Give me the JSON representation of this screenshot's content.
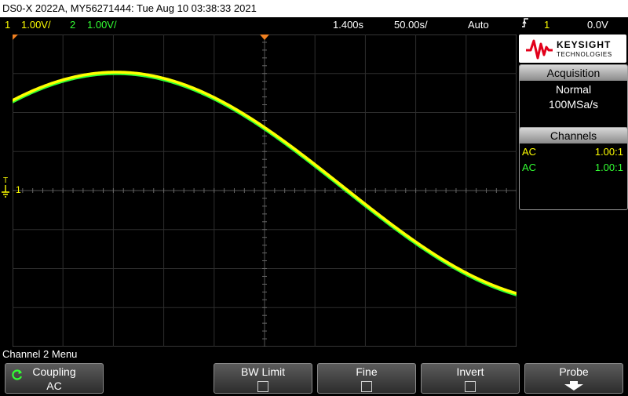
{
  "title_bar": "DS0-X 2022A, MY56271444: Tue Aug 10 03:38:33 2021",
  "status": {
    "ch1_num": "1",
    "ch1_scale": "1.00V/",
    "ch2_num": "2",
    "ch2_scale": "1.00V/",
    "time_delay": "1.400s",
    "time_scale": "50.00s/",
    "trigger_mode": "Auto",
    "trigger_ch": "1",
    "trigger_level": "0.0V"
  },
  "markers": {
    "trig_level_t": "T",
    "ch1_ground": "1"
  },
  "brand": {
    "name": "KEYSIGHT",
    "sub": "TECHNOLOGIES",
    "color": "#e2001a"
  },
  "acquisition": {
    "header": "Acquisition",
    "mode": "Normal",
    "rate": "100MSa/s"
  },
  "channels": {
    "header": "Channels",
    "rows": [
      {
        "coupling": "AC",
        "probe": "1.00:1",
        "color": "#ffff00"
      },
      {
        "coupling": "AC",
        "probe": "1.00:1",
        "color": "#33ff33"
      }
    ]
  },
  "menu": {
    "title": "Channel 2 Menu",
    "softkeys": [
      {
        "label": "Coupling",
        "value": "AC"
      },
      {
        "label": "BW Limit"
      },
      {
        "label": "Fine"
      },
      {
        "label": "Invert"
      },
      {
        "label": "Probe"
      }
    ]
  },
  "colors": {
    "ch1": "#ffff00",
    "ch2": "#33ff33",
    "grid": "#2e2e2e",
    "trigger": "#f08020"
  }
}
